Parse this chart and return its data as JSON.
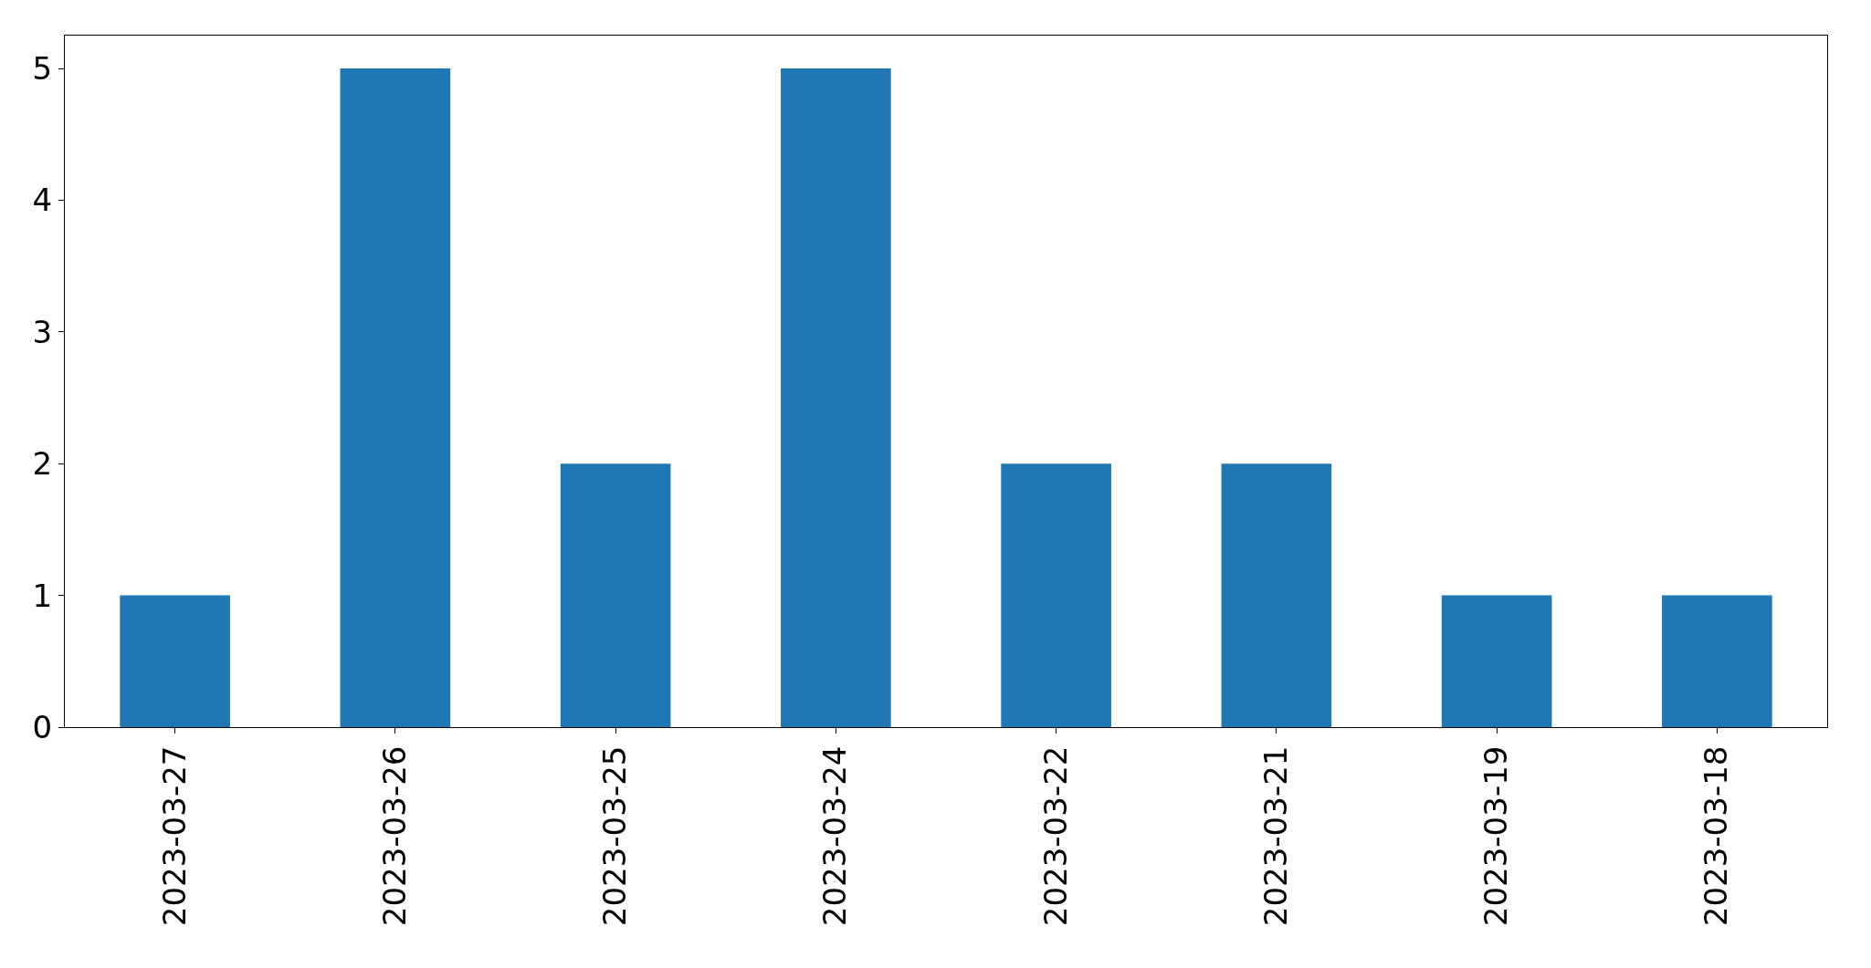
{
  "chart_data": {
    "type": "bar",
    "categories": [
      "2023-03-27",
      "2023-03-26",
      "2023-03-25",
      "2023-03-24",
      "2023-03-22",
      "2023-03-21",
      "2023-03-19",
      "2023-03-18"
    ],
    "values": [
      1,
      5,
      2,
      5,
      2,
      2,
      1,
      1
    ],
    "color": "#1f77b4",
    "ylim": [
      0,
      5.25
    ],
    "yticks": [
      0,
      1,
      2,
      3,
      4,
      5
    ]
  }
}
